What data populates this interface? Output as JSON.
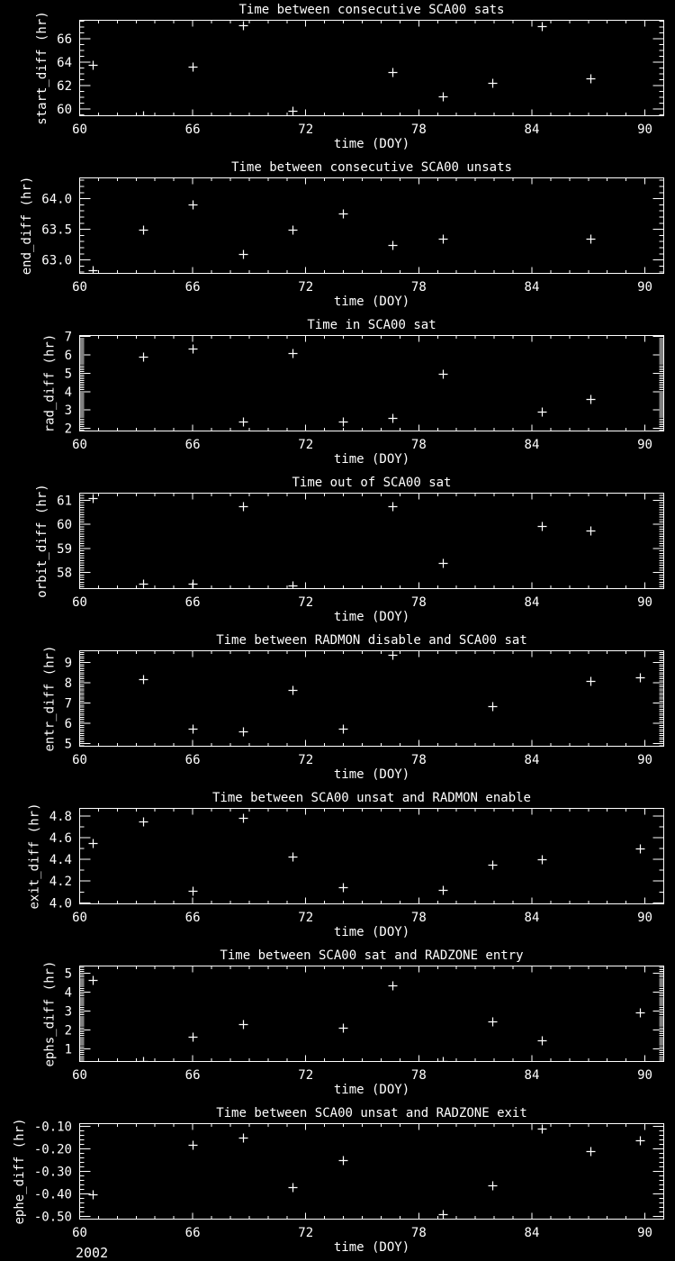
{
  "app": {
    "background": "#000000",
    "foreground": "#ffffff",
    "year_label": "2002",
    "marker": "plus"
  },
  "chart_data": [
    {
      "type": "scatter",
      "title": "Time between consecutive SCA00 sats",
      "xlabel": "time (DOY)",
      "ylabel": "start_diff (hr)",
      "xlim": [
        60,
        91
      ],
      "xticks": [
        60,
        66,
        72,
        78,
        84,
        90
      ],
      "xtick_labels": [
        "60",
        "66",
        "72",
        "78",
        "84",
        "90"
      ],
      "x_minor_step": 1,
      "ylim": [
        59.43,
        67.58
      ],
      "ytick_values": [
        60,
        62,
        64,
        66
      ],
      "ytick_labels": [
        "60",
        "62",
        "64",
        "66"
      ],
      "y_minor_step": 0.5,
      "points": [
        [
          60.7,
          63.75
        ],
        [
          63.35,
          59.45
        ],
        [
          66.0,
          63.6
        ],
        [
          68.65,
          67.15
        ],
        [
          71.3,
          59.85
        ],
        [
          76.6,
          63.15
        ],
        [
          79.25,
          61.05
        ],
        [
          81.9,
          62.2
        ],
        [
          84.55,
          67.05
        ],
        [
          87.1,
          62.6
        ]
      ]
    },
    {
      "type": "scatter",
      "title": "Time between consecutive SCA00 unsats",
      "xlabel": "time (DOY)",
      "ylabel": "end_diff (hr)",
      "xlim": [
        60,
        91
      ],
      "xticks": [
        60,
        66,
        72,
        78,
        84,
        90
      ],
      "xtick_labels": [
        "60",
        "66",
        "72",
        "78",
        "84",
        "90"
      ],
      "x_minor_step": 1,
      "ylim": [
        62.78,
        64.34
      ],
      "ytick_values": [
        63.0,
        63.5,
        64.0
      ],
      "ytick_labels": [
        "63.0",
        "63.5",
        "64.0"
      ],
      "y_minor_step": 0.1,
      "points": [
        [
          60.7,
          62.83
        ],
        [
          63.35,
          63.5
        ],
        [
          66.0,
          63.9
        ],
        [
          68.65,
          63.1
        ],
        [
          71.3,
          63.5
        ],
        [
          73.95,
          63.76
        ],
        [
          76.6,
          63.25
        ],
        [
          79.25,
          63.34
        ],
        [
          87.1,
          63.34
        ]
      ]
    },
    {
      "type": "scatter",
      "title": "Time in SCA00 sat",
      "xlabel": "time (DOY)",
      "ylabel": "rad_diff (hr)",
      "xlim": [
        60,
        91
      ],
      "xticks": [
        60,
        66,
        72,
        78,
        84,
        90
      ],
      "xtick_labels": [
        "60",
        "66",
        "72",
        "78",
        "84",
        "90"
      ],
      "x_minor_step": 1,
      "ylim": [
        1.85,
        7.06
      ],
      "ytick_values": [
        2,
        3,
        4,
        5,
        6,
        7
      ],
      "ytick_labels": [
        "2",
        "3",
        "4",
        "5",
        "6",
        "7"
      ],
      "y_minor_step": 0.1,
      "points": [
        [
          63.35,
          5.9
        ],
        [
          66.0,
          6.35
        ],
        [
          68.65,
          2.35
        ],
        [
          71.3,
          6.1
        ],
        [
          73.95,
          2.35
        ],
        [
          76.6,
          2.55
        ],
        [
          79.25,
          4.95
        ],
        [
          84.55,
          2.9
        ],
        [
          87.1,
          3.6
        ]
      ]
    },
    {
      "type": "scatter",
      "title": "Time out of SCA00 sat",
      "xlabel": "time (DOY)",
      "ylabel": "orbit_diff (hr)",
      "xlim": [
        60,
        91
      ],
      "xticks": [
        60,
        66,
        72,
        78,
        84,
        90
      ],
      "xtick_labels": [
        "60",
        "66",
        "72",
        "78",
        "84",
        "90"
      ],
      "x_minor_step": 1,
      "ylim": [
        57.33,
        61.3
      ],
      "ytick_values": [
        58,
        59,
        60,
        61
      ],
      "ytick_labels": [
        "58",
        "59",
        "60",
        "61"
      ],
      "y_minor_step": 0.1,
      "points": [
        [
          60.7,
          61.1
        ],
        [
          63.35,
          57.55
        ],
        [
          66.0,
          57.55
        ],
        [
          68.65,
          60.75
        ],
        [
          71.3,
          57.45
        ],
        [
          76.6,
          60.75
        ],
        [
          79.25,
          58.4
        ],
        [
          84.55,
          59.95
        ],
        [
          87.1,
          59.75
        ]
      ]
    },
    {
      "type": "scatter",
      "title": "Time between RADMON disable and SCA00 sat",
      "xlabel": "time (DOY)",
      "ylabel": "entr_diff (hr)",
      "xlim": [
        60,
        91
      ],
      "xticks": [
        60,
        66,
        72,
        78,
        84,
        90
      ],
      "xtick_labels": [
        "60",
        "66",
        "72",
        "78",
        "84",
        "90"
      ],
      "x_minor_step": 1,
      "ylim": [
        4.87,
        9.58
      ],
      "ytick_values": [
        5,
        6,
        7,
        8,
        9
      ],
      "ytick_labels": [
        "5",
        "6",
        "7",
        "8",
        "9"
      ],
      "y_minor_step": 0.1,
      "points": [
        [
          63.35,
          8.2
        ],
        [
          66.0,
          5.75
        ],
        [
          68.65,
          5.6
        ],
        [
          71.3,
          7.65
        ],
        [
          73.95,
          5.75
        ],
        [
          76.6,
          9.4
        ],
        [
          81.9,
          6.85
        ],
        [
          87.1,
          8.1
        ],
        [
          89.75,
          8.25
        ]
      ]
    },
    {
      "type": "scatter",
      "title": "Time between SCA00 unsat and RADMON enable",
      "xlabel": "time (DOY)",
      "ylabel": "exit_diff (hr)",
      "xlim": [
        60,
        91
      ],
      "xticks": [
        60,
        66,
        72,
        78,
        84,
        90
      ],
      "xtick_labels": [
        "60",
        "66",
        "72",
        "78",
        "84",
        "90"
      ],
      "x_minor_step": 1,
      "ylim": [
        3.99,
        4.87
      ],
      "ytick_values": [
        4.0,
        4.2,
        4.4,
        4.6,
        4.8
      ],
      "ytick_labels": [
        "4.0",
        "4.2",
        "4.4",
        "4.6",
        "4.8"
      ],
      "y_minor_step": 0.1,
      "points": [
        [
          60.7,
          4.55
        ],
        [
          63.35,
          4.75
        ],
        [
          66.0,
          4.11
        ],
        [
          68.65,
          4.78
        ],
        [
          71.3,
          4.43
        ],
        [
          73.95,
          4.14
        ],
        [
          79.25,
          4.12
        ],
        [
          81.9,
          4.35
        ],
        [
          84.55,
          4.4
        ],
        [
          89.75,
          4.5
        ]
      ]
    },
    {
      "type": "scatter",
      "title": "Time between SCA00 sat and RADZONE entry",
      "xlabel": "time (DOY)",
      "ylabel": "ephs_diff (hr)",
      "xlim": [
        60,
        91
      ],
      "xticks": [
        60,
        66,
        72,
        78,
        84,
        90
      ],
      "xtick_labels": [
        "60",
        "66",
        "72",
        "78",
        "84",
        "90"
      ],
      "x_minor_step": 1,
      "ylim": [
        0.33,
        5.38
      ],
      "ytick_values": [
        1,
        2,
        3,
        4,
        5
      ],
      "ytick_labels": [
        "1",
        "2",
        "3",
        "4",
        "5"
      ],
      "y_minor_step": 0.1,
      "points": [
        [
          60.7,
          4.65
        ],
        [
          63.35,
          0.35
        ],
        [
          66.0,
          1.65
        ],
        [
          68.65,
          2.3
        ],
        [
          73.95,
          2.1
        ],
        [
          76.6,
          4.35
        ],
        [
          79.25,
          0.35
        ],
        [
          81.9,
          2.45
        ],
        [
          84.55,
          1.45
        ],
        [
          89.75,
          2.95
        ]
      ]
    },
    {
      "type": "scatter",
      "title": "Time between SCA00 unsat and RADZONE exit",
      "xlabel": "time (DOY)",
      "ylabel": "ephe_diff (hr)",
      "xlim": [
        60,
        91
      ],
      "xticks": [
        60,
        66,
        72,
        78,
        84,
        90
      ],
      "xtick_labels": [
        "60",
        "66",
        "72",
        "78",
        "84",
        "90"
      ],
      "x_minor_step": 1,
      "ylim": [
        -0.512,
        -0.088
      ],
      "ytick_values": [
        -0.1,
        -0.2,
        -0.3,
        -0.4,
        -0.5
      ],
      "ytick_labels": [
        "-0.10",
        "-0.20",
        "-0.30",
        "-0.40",
        "-0.50"
      ],
      "y_minor_step": 0.02,
      "points": [
        [
          60.7,
          -0.4
        ],
        [
          66.0,
          -0.18
        ],
        [
          68.65,
          -0.15
        ],
        [
          71.3,
          -0.37
        ],
        [
          73.95,
          -0.25
        ],
        [
          79.25,
          -0.49
        ],
        [
          81.9,
          -0.36
        ],
        [
          84.55,
          -0.11
        ],
        [
          87.1,
          -0.21
        ],
        [
          89.75,
          -0.16
        ]
      ]
    }
  ]
}
